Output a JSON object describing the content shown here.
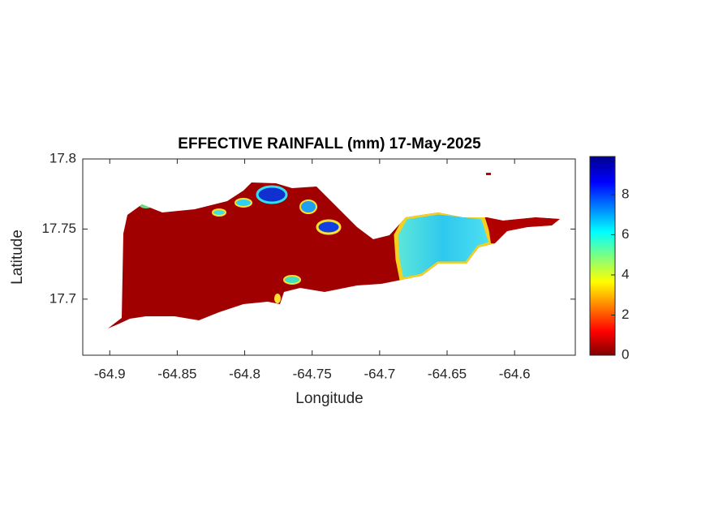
{
  "chart_data": {
    "type": "map",
    "title": "EFFECTIVE RAINFALL (mm) 17-May-2025",
    "x_label": "Longitude",
    "y_label": "Latitude",
    "xlim": [
      -64.92,
      -64.555
    ],
    "xticks": [
      -64.9,
      -64.85,
      -64.8,
      -64.75,
      -64.7,
      -64.65,
      -64.6
    ],
    "ylim": [
      17.66,
      17.8
    ],
    "yticks": [
      17.7,
      17.75,
      17.8
    ],
    "colorbar": {
      "lim": [
        0,
        9.9
      ],
      "ticks": [
        0,
        2,
        4,
        6,
        8
      ],
      "colormap": "jet"
    }
  }
}
